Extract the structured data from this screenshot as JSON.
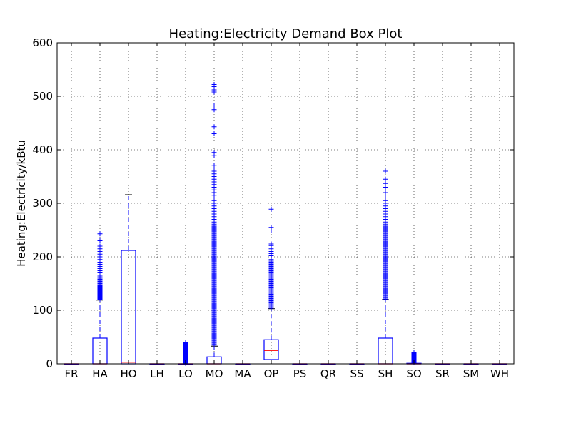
{
  "chart_data": {
    "type": "box",
    "title": "Heating:Electricity Demand Box Plot",
    "xlabel": "",
    "ylabel": "Heating:Electricity/kBtu",
    "ylim": [
      0,
      600
    ],
    "yticks": [
      0,
      100,
      200,
      300,
      400,
      500,
      600
    ],
    "grid": true,
    "colors": {
      "box": "#0000ff",
      "median": "#ff0000",
      "whisker": "#0000ff",
      "cap": "#000000",
      "flier": "#0000ff",
      "grid": "#000000"
    },
    "categories": [
      "FR",
      "HA",
      "HO",
      "LH",
      "LO",
      "MO",
      "MA",
      "OP",
      "PS",
      "QR",
      "SS",
      "SH",
      "SO",
      "SR",
      "SM",
      "WH"
    ],
    "boxes": [
      {
        "label": "FR",
        "q1": 0,
        "median": 0,
        "q3": 0,
        "whisker_low": 0,
        "whisker_high": 0,
        "outliers": []
      },
      {
        "label": "HA",
        "q1": 0,
        "median": 0,
        "q3": 48,
        "whisker_low": 0,
        "whisker_high": 119,
        "outliers": [
          120,
          121,
          122,
          123,
          124,
          125,
          126,
          127,
          128,
          129,
          130,
          131,
          132,
          133,
          134,
          135,
          136,
          137,
          138,
          139,
          140,
          141,
          142,
          143,
          144,
          145,
          146,
          147,
          148,
          150,
          152,
          154,
          156,
          158,
          160,
          162,
          164,
          166,
          170,
          174,
          178,
          182,
          186,
          190,
          195,
          200,
          205,
          210,
          215,
          220,
          230,
          243
        ]
      },
      {
        "label": "HO",
        "q1": 0,
        "median": 3,
        "q3": 212,
        "whisker_low": 0,
        "whisker_high": 316,
        "outliers": []
      },
      {
        "label": "LH",
        "q1": 0,
        "median": 0,
        "q3": 0,
        "whisker_low": 0,
        "whisker_high": 0,
        "outliers": []
      },
      {
        "label": "LO",
        "q1": 0,
        "median": 0,
        "q3": 0,
        "whisker_low": 0,
        "whisker_high": 0,
        "outliers": [
          1,
          2,
          3,
          4,
          5,
          6,
          7,
          8,
          9,
          10,
          11,
          12,
          13,
          14,
          15,
          16,
          17,
          18,
          19,
          20,
          21,
          22,
          23,
          24,
          25,
          26,
          27,
          28,
          29,
          30,
          31,
          32,
          33,
          34,
          35,
          36,
          37,
          38,
          39,
          40
        ]
      },
      {
        "label": "MO",
        "q1": 0,
        "median": 0,
        "q3": 13,
        "whisker_low": 0,
        "whisker_high": 33,
        "outliers": [
          35,
          37,
          39,
          41,
          43,
          45,
          47,
          49,
          51,
          53,
          55,
          57,
          59,
          61,
          63,
          65,
          67,
          69,
          71,
          73,
          75,
          77,
          79,
          81,
          83,
          85,
          87,
          89,
          91,
          93,
          95,
          97,
          99,
          101,
          103,
          105,
          107,
          109,
          111,
          113,
          115,
          117,
          119,
          121,
          123,
          125,
          127,
          129,
          131,
          133,
          135,
          137,
          139,
          141,
          143,
          145,
          147,
          149,
          151,
          153,
          155,
          157,
          159,
          161,
          163,
          165,
          167,
          169,
          171,
          173,
          175,
          177,
          179,
          181,
          183,
          185,
          187,
          189,
          191,
          193,
          195,
          197,
          199,
          201,
          203,
          205,
          207,
          209,
          211,
          213,
          215,
          217,
          219,
          221,
          223,
          225,
          227,
          229,
          231,
          233,
          235,
          237,
          239,
          241,
          243,
          245,
          247,
          249,
          251,
          253,
          255,
          257,
          259,
          261,
          265,
          270,
          275,
          280,
          285,
          290,
          295,
          300,
          305,
          310,
          315,
          320,
          325,
          330,
          335,
          340,
          345,
          350,
          355,
          360,
          366,
          371,
          389,
          395,
          430,
          443,
          475,
          482,
          508,
          512,
          518,
          522
        ]
      },
      {
        "label": "MA",
        "q1": 0,
        "median": 0,
        "q3": 0,
        "whisker_low": 0,
        "whisker_high": 0,
        "outliers": []
      },
      {
        "label": "OP",
        "q1": 8,
        "median": 25,
        "q3": 45,
        "whisker_low": 0,
        "whisker_high": 103,
        "outliers": [
          104,
          106,
          108,
          110,
          112,
          114,
          116,
          118,
          120,
          122,
          124,
          126,
          128,
          130,
          132,
          134,
          136,
          138,
          140,
          142,
          144,
          146,
          148,
          150,
          152,
          154,
          156,
          158,
          160,
          162,
          164,
          166,
          168,
          170,
          172,
          174,
          176,
          178,
          180,
          182,
          184,
          186,
          188,
          190,
          192,
          195,
          198,
          202,
          206,
          210,
          215,
          221,
          224,
          250,
          255,
          289
        ]
      },
      {
        "label": "PS",
        "q1": 0,
        "median": 0,
        "q3": 0,
        "whisker_low": 0,
        "whisker_high": 0,
        "outliers": []
      },
      {
        "label": "QR",
        "q1": 0,
        "median": 0,
        "q3": 0,
        "whisker_low": 0,
        "whisker_high": 0,
        "outliers": []
      },
      {
        "label": "SS",
        "q1": 0,
        "median": 0,
        "q3": 0,
        "whisker_low": 0,
        "whisker_high": 0,
        "outliers": []
      },
      {
        "label": "SH",
        "q1": 0,
        "median": 0,
        "q3": 48,
        "whisker_low": 0,
        "whisker_high": 120,
        "outliers": [
          121,
          123,
          125,
          127,
          129,
          131,
          133,
          135,
          137,
          139,
          141,
          143,
          145,
          147,
          149,
          151,
          153,
          155,
          157,
          159,
          161,
          163,
          165,
          167,
          169,
          171,
          173,
          175,
          177,
          179,
          181,
          183,
          185,
          187,
          189,
          191,
          193,
          195,
          197,
          199,
          201,
          203,
          205,
          207,
          209,
          211,
          213,
          215,
          217,
          219,
          221,
          223,
          225,
          227,
          229,
          231,
          233,
          235,
          237,
          239,
          241,
          243,
          245,
          247,
          249,
          251,
          253,
          255,
          257,
          259,
          261,
          265,
          270,
          275,
          280,
          285,
          290,
          295,
          300,
          305,
          310,
          320,
          330,
          337,
          345,
          360
        ]
      },
      {
        "label": "SO",
        "q1": 0,
        "median": 0,
        "q3": 1,
        "whisker_low": 0,
        "whisker_high": 1,
        "outliers": [
          2,
          3,
          4,
          5,
          6,
          7,
          8,
          9,
          10,
          11,
          12,
          13,
          14,
          15,
          16,
          17,
          18,
          19,
          20,
          21,
          22
        ]
      },
      {
        "label": "SR",
        "q1": 0,
        "median": 0,
        "q3": 0,
        "whisker_low": 0,
        "whisker_high": 0,
        "outliers": []
      },
      {
        "label": "SM",
        "q1": 0,
        "median": 0,
        "q3": 0,
        "whisker_low": 0,
        "whisker_high": 0,
        "outliers": []
      },
      {
        "label": "WH",
        "q1": 0,
        "median": 0,
        "q3": 0,
        "whisker_low": 0,
        "whisker_high": 0,
        "outliers": []
      }
    ]
  }
}
